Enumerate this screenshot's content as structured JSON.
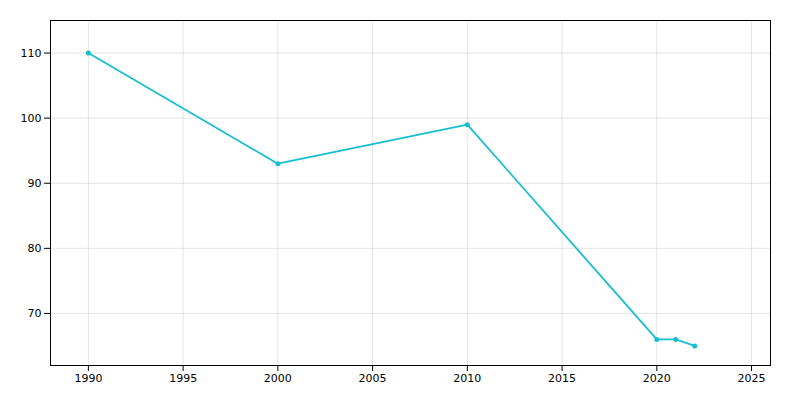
{
  "chart_data": {
    "type": "line",
    "x": [
      1990,
      2000,
      2010,
      2020,
      2021,
      2022
    ],
    "values": [
      110,
      93,
      99,
      66,
      66,
      65
    ],
    "color": "#17becf",
    "marker": "circle",
    "xlim": [
      1988,
      2026
    ],
    "ylim": [
      62,
      115
    ],
    "xticks": [
      1990,
      1995,
      2000,
      2005,
      2010,
      2015,
      2020,
      2025
    ],
    "yticks": [
      70,
      80,
      90,
      100,
      110
    ],
    "grid": true
  }
}
